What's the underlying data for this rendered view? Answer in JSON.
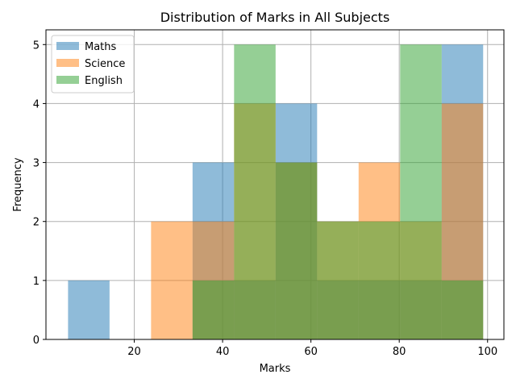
{
  "chart_data": {
    "type": "histogram",
    "title": "Distribution of Marks in All Subjects",
    "xlabel": "Marks",
    "ylabel": "Frequency",
    "xlim": [
      0,
      103.7
    ],
    "ylim": [
      0,
      5.25
    ],
    "xticks": [
      20,
      40,
      60,
      80,
      100
    ],
    "yticks": [
      0,
      1,
      2,
      3,
      4,
      5
    ],
    "grid": true,
    "legend_position": "top-left",
    "bin_edges": [
      5,
      14.4,
      23.8,
      33.2,
      42.6,
      52,
      61.4,
      70.8,
      80.2,
      89.6,
      99
    ],
    "bar_alpha": 0.5,
    "series": [
      {
        "name": "Maths",
        "color": "#1f77b4",
        "counts": [
          1,
          0,
          0,
          3,
          1,
          4,
          1,
          1,
          1,
          5
        ]
      },
      {
        "name": "Science",
        "color": "#ff7f0e",
        "counts": [
          0,
          0,
          2,
          2,
          4,
          3,
          2,
          3,
          2,
          4
        ]
      },
      {
        "name": "English",
        "color": "#2ca02c",
        "counts": [
          0,
          0,
          0,
          1,
          5,
          3,
          2,
          2,
          5,
          1
        ]
      }
    ]
  }
}
